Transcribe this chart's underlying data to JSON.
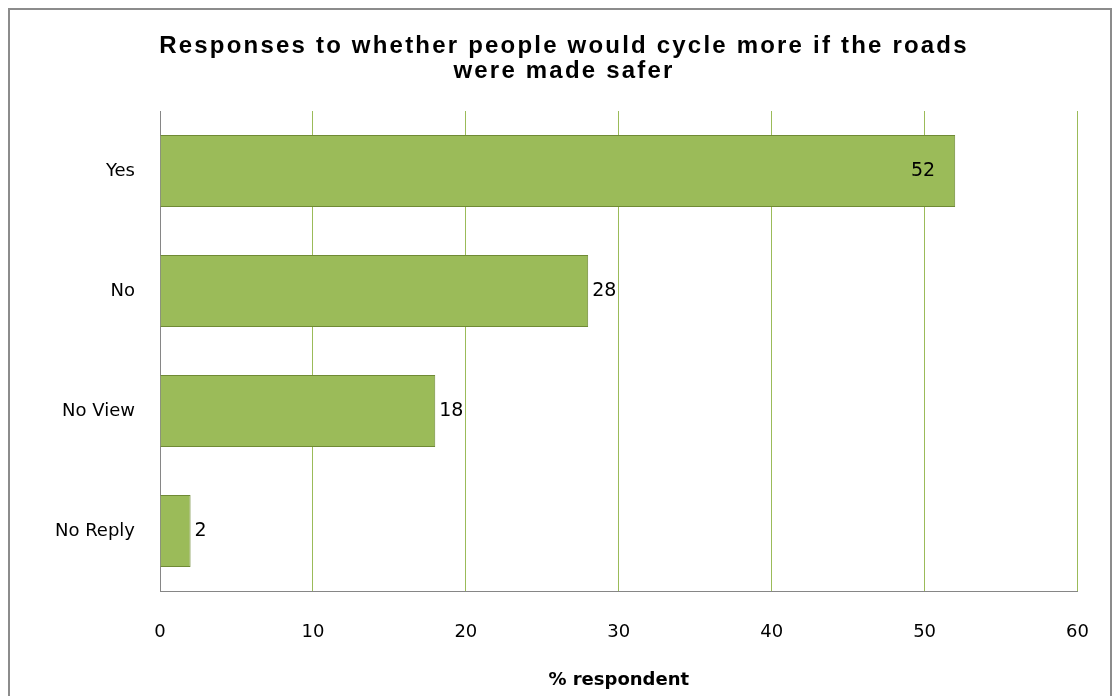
{
  "chart_data": {
    "type": "bar",
    "title": "Responses to whether people would cycle more if the roads were made safer",
    "xlabel": "% respondent",
    "orientation": "horizontal",
    "categories": [
      "Yes",
      "No",
      "No View",
      "No Reply"
    ],
    "values": [
      52,
      28,
      18,
      2
    ],
    "color": "#9bbb59",
    "xlim": [
      0,
      60
    ],
    "xticks": [
      0,
      10,
      20,
      30,
      40,
      50,
      60
    ],
    "grid": "x",
    "data_labels": true
  }
}
